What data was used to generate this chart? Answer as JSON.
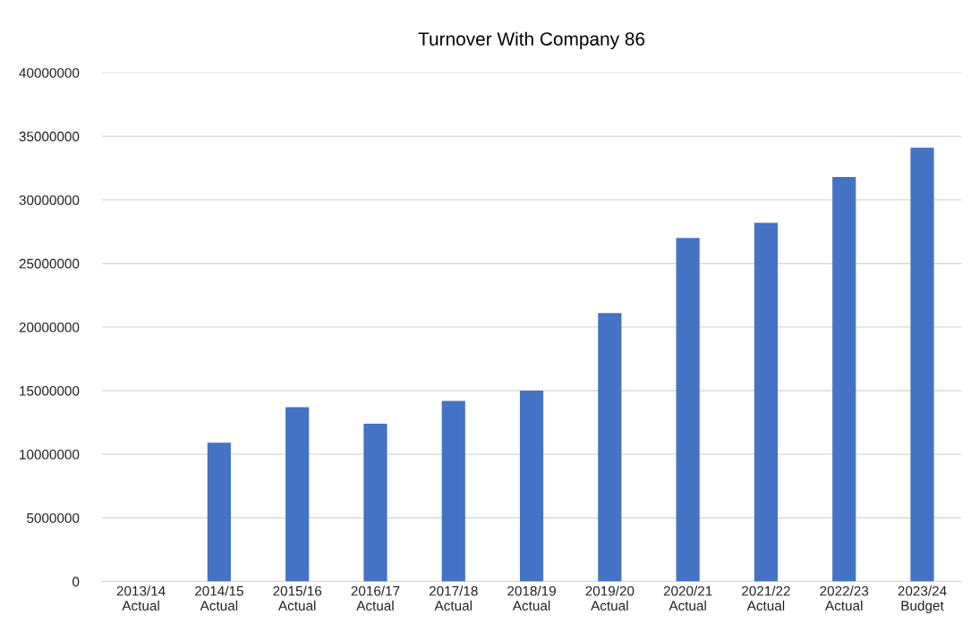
{
  "chart_data": {
    "type": "bar",
    "title": "Turnover With Company 86",
    "categories": [
      "2013/14\nActual",
      "2014/15\nActual",
      "2015/16\nActual",
      "2016/17\nActual",
      "2017/18\nActual",
      "2018/19\nActual",
      "2019/20\nActual",
      "2020/21\nActual",
      "2021/22\nActual",
      "2022/23\nActual",
      "2023/24\nBudget"
    ],
    "values": [
      0,
      10900000,
      13700000,
      12400000,
      14200000,
      15000000,
      21100000,
      27000000,
      28200000,
      31800000,
      34100000
    ],
    "color": "#4472c4",
    "ylim": [
      0,
      40000000
    ],
    "yticks": [
      0,
      5000000,
      10000000,
      15000000,
      20000000,
      25000000,
      30000000,
      35000000,
      40000000
    ],
    "grid": "y",
    "legend": false
  }
}
